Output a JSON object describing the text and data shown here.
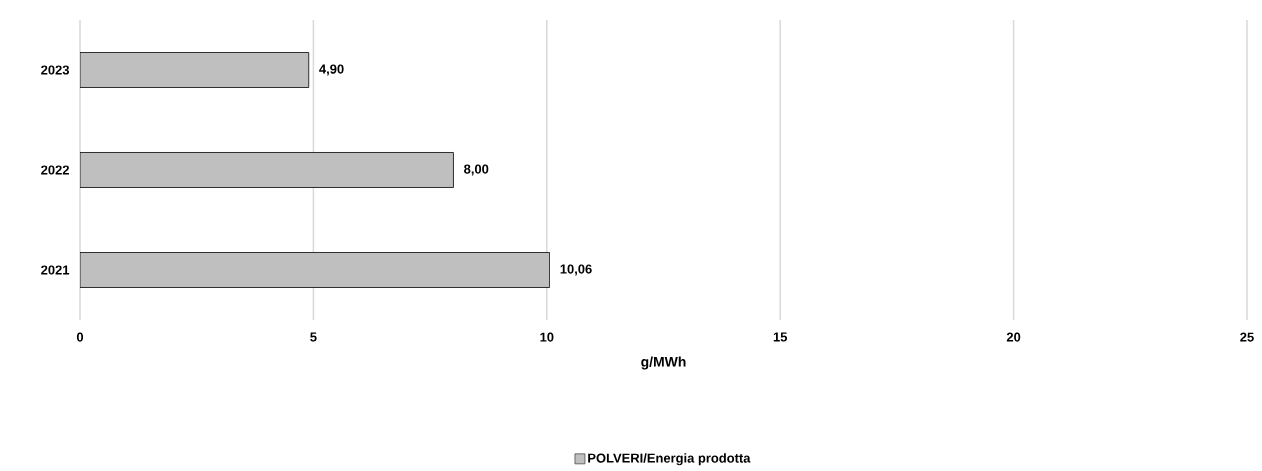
{
  "chart_data": {
    "type": "bar",
    "orientation": "horizontal",
    "xlabel": "g/MWh",
    "categories": [
      "2023",
      "2022",
      "2021"
    ],
    "series": [
      {
        "name": "POLVERI/Energia prodotta",
        "color": "#bfbfbf",
        "values": [
          4.9,
          8.0,
          10.06
        ],
        "value_labels": [
          "4,90",
          "8,00",
          "10,06"
        ]
      }
    ],
    "xlim": [
      0,
      25
    ],
    "xticks": [
      0,
      5,
      10,
      15,
      20,
      25
    ],
    "grid": "x",
    "legend": "bottom"
  }
}
